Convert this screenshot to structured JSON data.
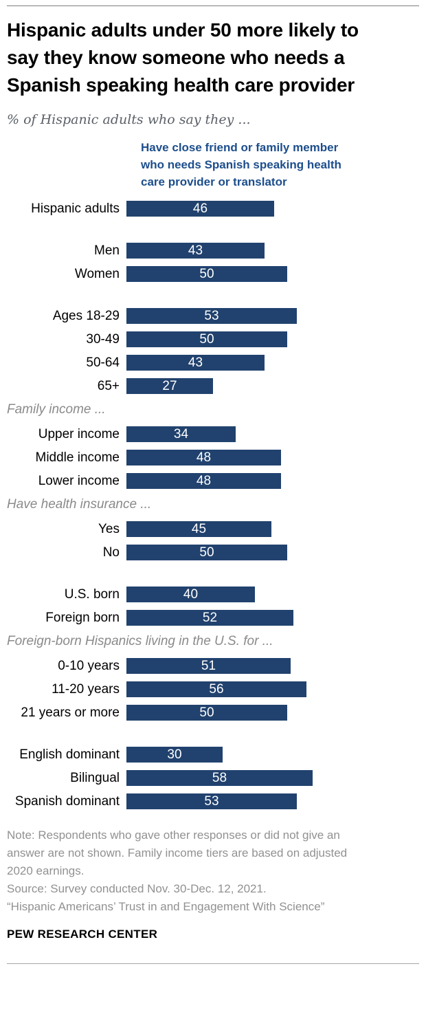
{
  "header": {
    "title": "Hispanic adults under 50 more likely to say they know someone who needs a Spanish speaking health care provider",
    "title_lines": [
      "Hispanic adults under 50 more likely to",
      "say they know someone who needs a",
      "Spanish speaking health care provider"
    ],
    "subtitle": "% of Hispanic adults who say they ..."
  },
  "legend": {
    "label": "Have close friend or family member who needs Spanish speaking health care provider or translator",
    "lines": [
      "Have close friend or family member",
      "who needs Spanish speaking health",
      "care provider or translator"
    ],
    "color": "#1c4e8c"
  },
  "chart_data": {
    "type": "bar",
    "orientation": "horizontal",
    "unit": "%",
    "title": "Hispanic adults under 50 more likely to say they know someone who needs a Spanish speaking health care provider",
    "subtitle": "% of Hispanic adults who say they ...",
    "series_label": "Have close friend or family member who needs Spanish speaking health care provider or translator",
    "bar_color": "#21426e",
    "value_label_color": "#ffffff",
    "value_range": [
      0,
      60
    ],
    "grid": false,
    "groups": [
      {
        "header": null,
        "rows": [
          {
            "label": "Hispanic adults",
            "value": 46
          }
        ]
      },
      {
        "header": null,
        "rows": [
          {
            "label": "Men",
            "value": 43
          },
          {
            "label": "Women",
            "value": 50
          }
        ]
      },
      {
        "header": null,
        "rows": [
          {
            "label": "Ages 18-29",
            "value": 53
          },
          {
            "label": "30-49",
            "value": 50
          },
          {
            "label": "50-64",
            "value": 43
          },
          {
            "label": "65+",
            "value": 27
          }
        ]
      },
      {
        "header": "Family income ...",
        "rows": [
          {
            "label": "Upper income",
            "value": 34
          },
          {
            "label": "Middle income",
            "value": 48
          },
          {
            "label": "Lower income",
            "value": 48
          }
        ]
      },
      {
        "header": "Have health insurance ...",
        "rows": [
          {
            "label": "Yes",
            "value": 45
          },
          {
            "label": "No",
            "value": 50
          }
        ]
      },
      {
        "header": null,
        "rows": [
          {
            "label": "U.S. born",
            "value": 40
          },
          {
            "label": "Foreign born",
            "value": 52
          }
        ]
      },
      {
        "header": "Foreign-born Hispanics living in the U.S. for ...",
        "rows": [
          {
            "label": "0-10 years",
            "value": 51
          },
          {
            "label": "11-20 years",
            "value": 56
          },
          {
            "label": "21 years or more",
            "value": 50
          }
        ]
      },
      {
        "header": null,
        "rows": [
          {
            "label": "English dominant",
            "value": 30
          },
          {
            "label": "Bilingual",
            "value": 58
          },
          {
            "label": "Spanish dominant",
            "value": 53
          }
        ]
      }
    ]
  },
  "notes": {
    "lines": [
      "Note: Respondents who gave other responses or did not give an",
      "answer are not shown. Family income tiers are based on adjusted",
      "2020 earnings.",
      "Source: Survey conducted Nov. 30-Dec. 12, 2021.",
      "“Hispanic Americans’ Trust in and Engagement With Science”"
    ]
  },
  "footer": {
    "brand": "PEW RESEARCH CENTER"
  }
}
